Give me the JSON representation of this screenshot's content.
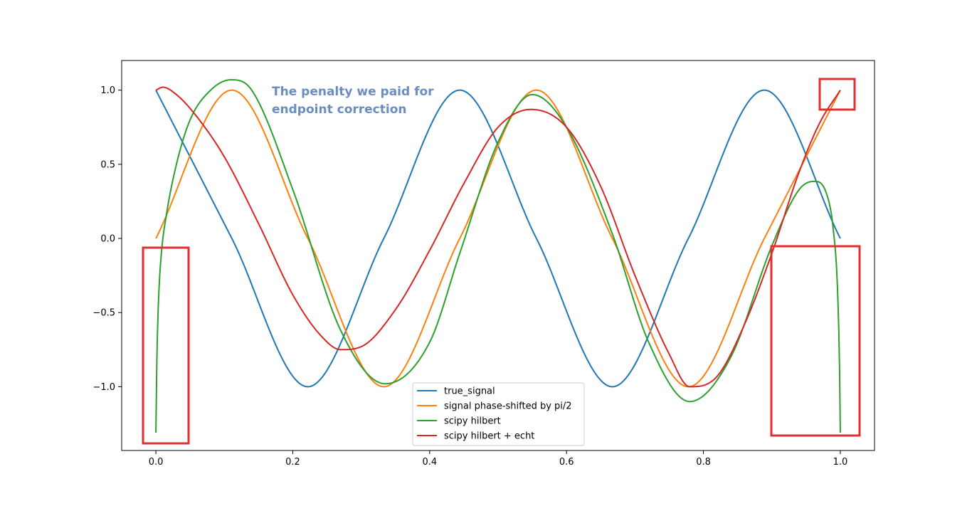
{
  "chart_data": {
    "type": "line",
    "title": "",
    "xlabel": "",
    "ylabel": "",
    "xlim": [
      -0.05,
      1.05
    ],
    "ylim": [
      -1.43,
      1.2
    ],
    "grid": false,
    "legend_position": "lower-center",
    "x_ticks": [
      {
        "value": 0.0,
        "label": "0.0"
      },
      {
        "value": 0.2,
        "label": "0.2"
      },
      {
        "value": 0.4,
        "label": "0.4"
      },
      {
        "value": 0.6,
        "label": "0.6"
      },
      {
        "value": 0.8,
        "label": "0.8"
      },
      {
        "value": 1.0,
        "label": "1.0"
      }
    ],
    "y_ticks": [
      {
        "value": 1.0,
        "label": "1.0"
      },
      {
        "value": 0.5,
        "label": "0.5"
      },
      {
        "value": 0.0,
        "label": "0.0"
      },
      {
        "value": -0.5,
        "label": "−0.5"
      },
      {
        "value": -1.0,
        "label": "−1.0"
      }
    ],
    "series": [
      {
        "name": "true_signal",
        "color": "#1f77b4",
        "x": [
          0.0,
          0.111,
          0.222,
          0.333,
          0.444,
          0.556,
          0.667,
          0.778,
          0.889,
          1.0
        ],
        "y": [
          1.0,
          0.0,
          -1.0,
          0.0,
          1.0,
          0.0,
          -1.0,
          0.0,
          1.0,
          0.0
        ]
      },
      {
        "name": "signal phase-shifted by pi/2",
        "color": "#ff7f0e",
        "x": [
          0.0,
          0.111,
          0.222,
          0.333,
          0.444,
          0.556,
          0.667,
          0.778,
          0.889,
          1.0
        ],
        "y": [
          0.0,
          1.0,
          0.0,
          -1.0,
          0.0,
          1.0,
          0.0,
          -1.0,
          0.0,
          1.0
        ]
      },
      {
        "name": "scipy hilbert",
        "color": "#2ca02c",
        "x": [
          0.0,
          0.0015,
          0.004,
          0.008,
          0.015,
          0.03,
          0.05,
          0.08,
          0.11,
          0.14,
          0.2,
          0.27,
          0.335,
          0.4,
          0.444,
          0.5,
          0.55,
          0.6,
          0.667,
          0.72,
          0.78,
          0.84,
          0.9,
          0.94,
          0.962,
          0.98,
          0.99,
          0.996,
          0.999,
          1.0
        ],
        "y": [
          -1.31,
          -0.8,
          -0.4,
          -0.1,
          0.15,
          0.5,
          0.8,
          1.0,
          1.07,
          1.0,
          0.33,
          -0.62,
          -0.98,
          -0.7,
          -0.1,
          0.65,
          0.97,
          0.75,
          0.03,
          -0.7,
          -1.1,
          -0.8,
          -0.05,
          0.33,
          0.385,
          0.3,
          0.05,
          -0.35,
          -0.9,
          -1.31
        ]
      },
      {
        "name": "scipy hilbert + echt",
        "color": "#d62728",
        "x": [
          0.0,
          0.01,
          0.03,
          0.06,
          0.1,
          0.15,
          0.2,
          0.24,
          0.27,
          0.3,
          0.35,
          0.4,
          0.45,
          0.5,
          0.548,
          0.6,
          0.65,
          0.7,
          0.75,
          0.78,
          0.82,
          0.86,
          0.9,
          0.94,
          0.97,
          1.0
        ],
        "y": [
          1.0,
          1.02,
          0.97,
          0.82,
          0.55,
          0.1,
          -0.38,
          -0.65,
          -0.75,
          -0.73,
          -0.48,
          -0.08,
          0.37,
          0.75,
          0.87,
          0.75,
          0.35,
          -0.25,
          -0.78,
          -1.0,
          -0.93,
          -0.58,
          -0.1,
          0.45,
          0.78,
          1.0
        ]
      }
    ],
    "annotation": {
      "lines": [
        "The penalty we paid for",
        "endpoint correction"
      ],
      "color": "#6a8dbf"
    },
    "highlight_color": "#e03030"
  }
}
